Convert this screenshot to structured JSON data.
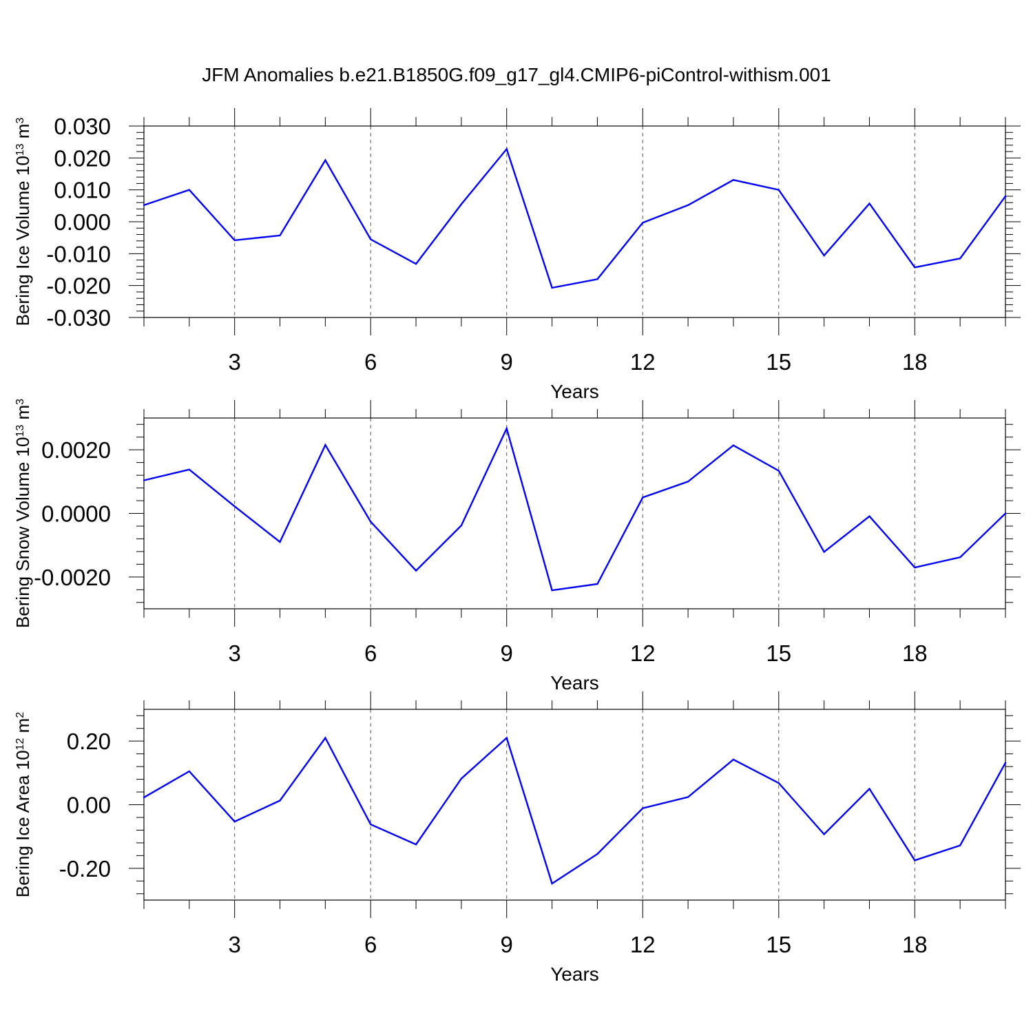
{
  "title": "JFM Anomalies b.e21.B1850G.f09_g17_gl4.CMIP6-piControl-withism.001",
  "colors": {
    "line": "#0000ff",
    "axis": "#000000",
    "grid": "#555555"
  },
  "chart_data": [
    {
      "type": "line",
      "xlabel": "Years",
      "ylabel": "Bering Ice Volume 10",
      "ylabel_exp": "13",
      "ylabel_unit": " m",
      "ylabel_unit_exp": "3",
      "xlim": [
        1,
        20
      ],
      "ylim": [
        -0.03,
        0.03
      ],
      "xticks": [
        3,
        6,
        9,
        12,
        15,
        18
      ],
      "yticks": [
        -0.03,
        -0.02,
        -0.01,
        0.0,
        0.01,
        0.02,
        0.03
      ],
      "ytick_labels": [
        "-0.030",
        "-0.020",
        "-0.010",
        "0.000",
        "0.010",
        "0.020",
        "0.030"
      ],
      "grid": "vertical dashed at x ticks",
      "x": [
        1,
        2,
        3,
        4,
        5,
        6,
        7,
        8,
        9,
        10,
        11,
        12,
        13,
        14,
        15,
        16,
        17,
        18,
        19,
        20
      ],
      "y": [
        0.0052,
        0.01,
        -0.0058,
        -0.0043,
        0.0193,
        -0.0055,
        -0.0132,
        0.0055,
        0.0228,
        -0.0207,
        -0.018,
        -0.0003,
        0.0052,
        0.0131,
        0.01,
        -0.0106,
        0.0057,
        -0.0143,
        -0.0115,
        0.008
      ]
    },
    {
      "type": "line",
      "xlabel": "Years",
      "ylabel": "Bering Snow Volume 10",
      "ylabel_exp": "13",
      "ylabel_unit": " m",
      "ylabel_unit_exp": "3",
      "xlim": [
        1,
        20
      ],
      "ylim": [
        -0.003,
        0.003
      ],
      "xticks": [
        3,
        6,
        9,
        12,
        15,
        18
      ],
      "yticks": [
        -0.002,
        0.0,
        0.002
      ],
      "ytick_labels": [
        "-0.0020",
        "0.0000",
        "0.0020"
      ],
      "grid": "vertical dashed at x ticks",
      "x": [
        1,
        2,
        3,
        4,
        5,
        6,
        7,
        8,
        9,
        10,
        11,
        12,
        13,
        14,
        15,
        16,
        17,
        18,
        19,
        20
      ],
      "y": [
        0.00104,
        0.00138,
        0.00022,
        -0.0009,
        0.00215,
        -0.00026,
        -0.0018,
        -0.00038,
        0.00267,
        -0.00242,
        -0.00222,
        0.0005,
        0.001,
        0.00214,
        0.00134,
        -0.00121,
        -9e-05,
        -0.0017,
        -0.00138,
        0.0
      ]
    },
    {
      "type": "line",
      "xlabel": "Years",
      "ylabel": "Bering Ice Area 10",
      "ylabel_exp": "12",
      "ylabel_unit": " m",
      "ylabel_unit_exp": "2",
      "xlim": [
        1,
        20
      ],
      "ylim": [
        -0.3,
        0.3
      ],
      "xticks": [
        3,
        6,
        9,
        12,
        15,
        18
      ],
      "yticks": [
        -0.2,
        0.0,
        0.2
      ],
      "ytick_labels": [
        "-0.20",
        "0.00",
        "0.20"
      ],
      "grid": "vertical dashed at x ticks",
      "x": [
        1,
        2,
        3,
        4,
        5,
        6,
        7,
        8,
        9,
        10,
        11,
        12,
        13,
        14,
        15,
        16,
        17,
        18,
        19,
        20
      ],
      "y": [
        0.023,
        0.105,
        -0.053,
        0.013,
        0.21,
        -0.062,
        -0.125,
        0.082,
        0.21,
        -0.248,
        -0.155,
        -0.011,
        0.024,
        0.142,
        0.068,
        -0.093,
        0.05,
        -0.175,
        -0.128,
        0.132
      ]
    }
  ]
}
